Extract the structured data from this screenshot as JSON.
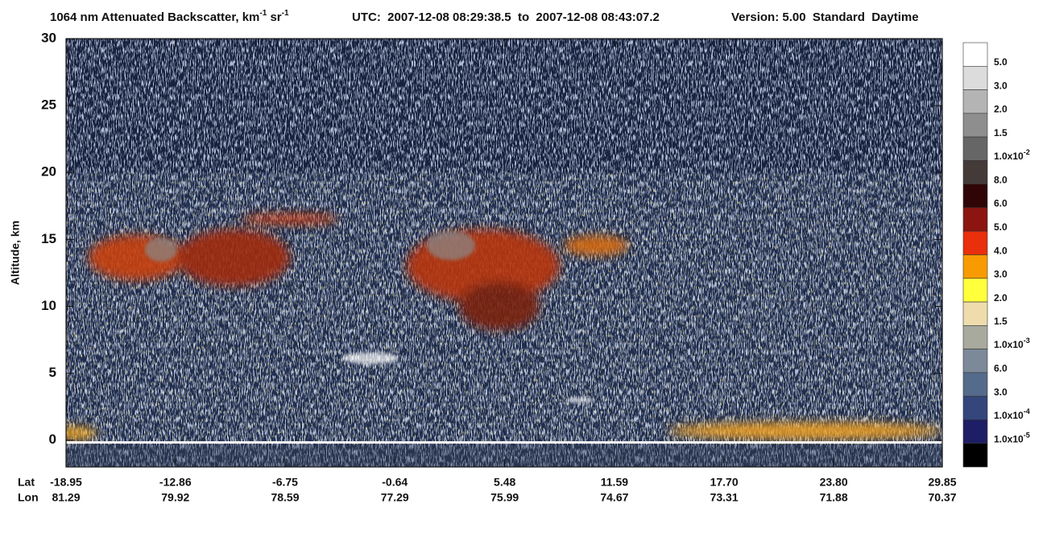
{
  "chart_data": {
    "type": "heatmap",
    "title_segments": [
      {
        "text": "1064 nm Attenuated Backscatter, km",
        "sup": false
      },
      {
        "text": "-1",
        "sup": true
      },
      {
        "text": " sr",
        "sup": false
      },
      {
        "text": "-1",
        "sup": true
      }
    ],
    "time_range": "UTC:  2007-12-08 08:29:38.5  to  2007-12-08 08:43:07.2",
    "version": "Version: 5.00  Standard  Daytime",
    "ylabel": "Altitude, km",
    "ylim": [
      -2,
      30
    ],
    "yticks": [
      0,
      5,
      10,
      15,
      20,
      25,
      30
    ],
    "x_row_labels": [
      "Lat",
      "Lon"
    ],
    "xlim": [
      -18.95,
      29.85
    ],
    "xticks": [
      -18.95,
      -12.86,
      -6.75,
      -0.64,
      5.48,
      11.59,
      {
        "value": 17.7,
        "label": "17.70"
      },
      {
        "value": 23.8,
        "label": "23.80"
      },
      29.85
    ],
    "lon_labels": [
      "81.29",
      "79.92",
      "78.59",
      "77.29",
      "75.99",
      "74.67",
      "73.31",
      "71.88",
      "70.37"
    ],
    "colorbar": {
      "colors": [
        "#ffffff",
        "#dcdcdc",
        "#b4b4b4",
        "#8e8e8e",
        "#666666",
        "#443a38",
        "#300505",
        "#8c1510",
        "#e92f0c",
        "#f89b00",
        "#ffff3c",
        "#eedcac",
        "#a8aa9e",
        "#7b8998",
        "#546b8c",
        "#34467c",
        "#1e1e66",
        "#000000"
      ],
      "labels": [
        "5.0",
        "3.0",
        "2.0",
        "1.5",
        {
          "base": "1.0x10",
          "exp": "-2"
        },
        "8.0",
        "6.0",
        "5.0",
        "4.0",
        "3.0",
        "2.0",
        "1.5",
        {
          "base": "1.0x10",
          "exp": "-3"
        },
        "6.0",
        "3.0",
        {
          "base": "1.0x10",
          "exp": "-4"
        },
        {
          "base": "1.0x10",
          "exp": "-5"
        }
      ]
    }
  }
}
